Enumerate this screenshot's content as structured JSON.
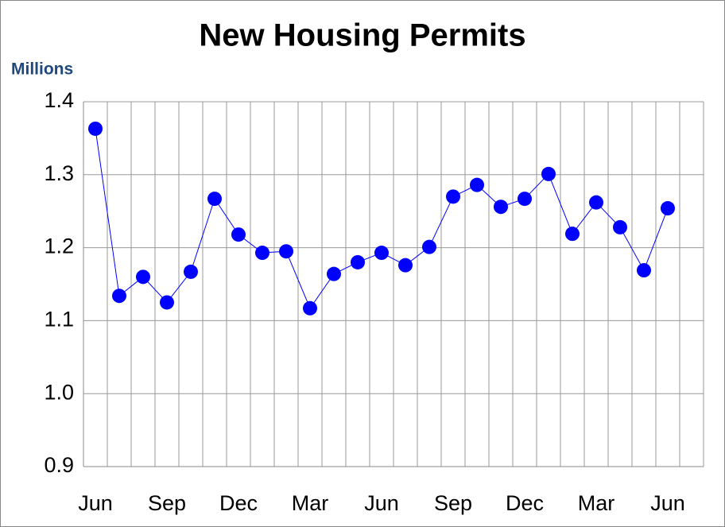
{
  "chart_data": {
    "type": "line",
    "title": "New Housing Permits",
    "y_label": "Millions",
    "categories": [
      "Jun",
      null,
      null,
      "Sep",
      null,
      null,
      "Dec",
      null,
      null,
      "Mar",
      null,
      null,
      "Jun",
      null,
      null,
      "Sep",
      null,
      null,
      "Dec",
      null,
      null,
      "Mar",
      null,
      null,
      "Jun",
      null
    ],
    "series": [
      {
        "name": "New Housing Permits",
        "color": "#0000ff",
        "values": [
          1.363,
          1.134,
          1.16,
          1.125,
          1.167,
          1.267,
          1.218,
          1.193,
          1.195,
          1.117,
          1.164,
          1.18,
          1.193,
          1.176,
          1.201,
          1.27,
          1.286,
          1.256,
          1.267,
          1.301,
          1.219,
          1.262,
          1.228,
          1.169,
          1.254,
          null
        ]
      }
    ],
    "ylim": [
      0.9,
      1.4
    ],
    "yticks": [
      0.9,
      {
        "value": 1,
        "label": "1.0"
      },
      1.1,
      1.2,
      1.3,
      1.4
    ],
    "grid": true
  }
}
